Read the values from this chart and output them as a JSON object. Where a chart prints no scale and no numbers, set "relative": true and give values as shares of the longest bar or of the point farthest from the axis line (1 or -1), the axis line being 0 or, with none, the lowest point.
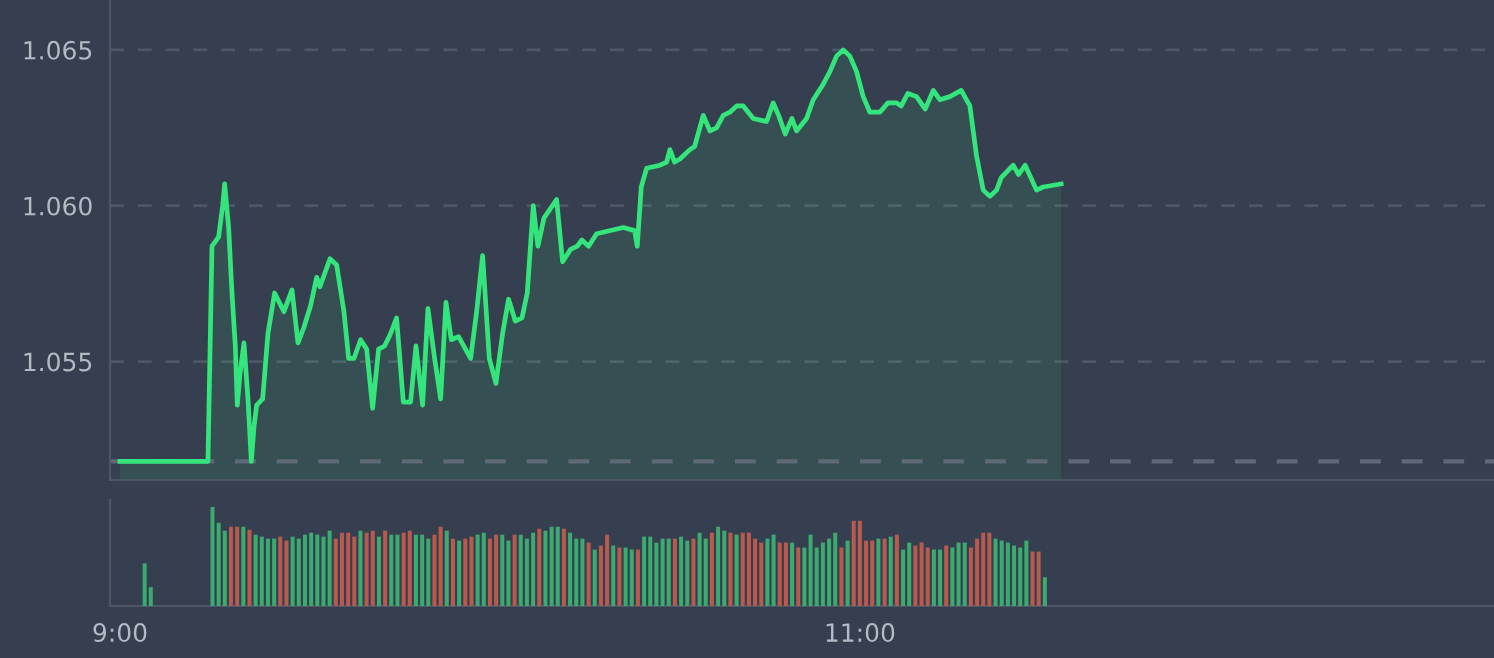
{
  "chart_data": [
    {
      "type": "area",
      "color": "#33e57a",
      "grid": "y",
      "tick_labels": "y",
      "xlim": [
        8.973,
        12.714
      ],
      "ylim": [
        1.0512,
        1.0666
      ],
      "yticks": [
        1.055,
        {
          "value": 1.06,
          "label": "1.060"
        },
        1.065
      ],
      "ref_lines": [
        {
          "axis": "y",
          "value": 1.0518,
          "color": "#5f6877",
          "line_style": "dashed"
        }
      ],
      "x": [
        9.0,
        9.2378,
        9.2487,
        9.2667,
        9.2775,
        9.2829,
        9.2937,
        9.3027,
        9.3117,
        9.3171,
        9.3243,
        9.3351,
        9.346,
        9.355,
        9.3622,
        9.3694,
        9.3856,
        9.4,
        9.418,
        9.4432,
        9.4649,
        9.4811,
        9.4973,
        9.5153,
        9.5315,
        9.5405,
        9.5676,
        9.5856,
        9.6054,
        9.618,
        9.6324,
        9.6504,
        9.6667,
        9.6829,
        9.6991,
        9.7153,
        9.7315,
        9.7477,
        9.7658,
        9.7856,
        9.8,
        9.818,
        9.8324,
        9.8505,
        9.8667,
        9.8811,
        9.8955,
        9.9153,
        9.9477,
        9.964,
        9.9802,
        9.9982,
        10.0162,
        10.0342,
        10.0504,
        10.0685,
        10.0865,
        10.1009,
        10.1171,
        10.1297,
        10.1459,
        10.1802,
        10.1964,
        10.218,
        10.236,
        10.2486,
        10.2667,
        10.2883,
        10.3604,
        10.391,
        10.3982,
        10.409,
        10.4234,
        10.4595,
        10.4775,
        10.4865,
        10.4991,
        10.5135,
        10.5405,
        10.5532,
        10.5766,
        10.5946,
        10.6126,
        10.6306,
        10.6486,
        10.6667,
        10.6847,
        10.7117,
        10.7477,
        10.7658,
        10.7802,
        10.7982,
        10.8162,
        10.8288,
        10.8559,
        10.8739,
        10.9009,
        10.9189,
        10.9369,
        10.955,
        10.973,
        10.991,
        11.009,
        11.027,
        11.0541,
        11.0757,
        11.0991,
        11.1117,
        11.1297,
        11.1532,
        11.1766,
        11.1982,
        11.2162,
        11.2432,
        11.2739,
        11.2973,
        11.3153,
        11.3333,
        11.3514,
        11.3694,
        11.382,
        11.4144,
        11.4288,
        11.4468,
        11.4775,
        11.4955,
        11.5441
      ],
      "values": [
        1.0518,
        1.0518,
        1.0587,
        1.059,
        1.06,
        1.0607,
        1.0593,
        1.0572,
        1.0555,
        1.0536,
        1.0546,
        1.0556,
        1.0538,
        1.0518,
        1.0529,
        1.0536,
        1.0538,
        1.0559,
        1.0572,
        1.0566,
        1.0573,
        1.0556,
        1.0561,
        1.0568,
        1.0577,
        1.0574,
        1.0583,
        1.0581,
        1.0566,
        1.0551,
        1.0551,
        1.0557,
        1.0554,
        1.0535,
        1.0554,
        1.0555,
        1.0559,
        1.0564,
        1.0537,
        1.0537,
        1.0555,
        1.0536,
        1.0567,
        1.0551,
        1.0538,
        1.0569,
        1.0557,
        1.0558,
        1.0551,
        1.0566,
        1.0584,
        1.0551,
        1.0543,
        1.0559,
        1.057,
        1.0563,
        1.0564,
        1.0572,
        1.06,
        1.0587,
        1.0596,
        1.0602,
        1.0582,
        1.0586,
        1.0587,
        1.0589,
        1.0587,
        1.0591,
        1.0593,
        1.0592,
        1.0587,
        1.0606,
        1.0612,
        1.0613,
        1.0614,
        1.0618,
        1.0614,
        1.0615,
        1.0618,
        1.0619,
        1.0629,
        1.0624,
        1.0625,
        1.0629,
        1.063,
        1.0632,
        1.0632,
        1.0628,
        1.0627,
        1.0633,
        1.0629,
        1.0623,
        1.0628,
        1.0624,
        1.0628,
        1.0634,
        1.0639,
        1.0643,
        1.0648,
        1.065,
        1.0648,
        1.0643,
        1.0635,
        1.063,
        1.063,
        1.0633,
        1.0633,
        1.0632,
        1.0636,
        1.0635,
        1.0631,
        1.0637,
        1.0634,
        1.0635,
        1.0637,
        1.0632,
        1.0616,
        1.0605,
        1.0603,
        1.0605,
        1.0609,
        1.0613,
        1.061,
        1.0613,
        1.0605,
        1.0606,
        1.0607
      ]
    },
    {
      "type": "bar",
      "relative": true,
      "tick_labels": "x",
      "xlim": [
        8.973,
        12.714
      ],
      "xticks": [
        {
          "value": 9,
          "label": "9:00"
        },
        {
          "value": 11,
          "label": "11:00"
        }
      ],
      "x": [
        9.0667,
        9.0833,
        9.25,
        9.2667,
        9.2833,
        9.3,
        9.3167,
        9.3333,
        9.35,
        9.3667,
        9.3833,
        9.4,
        9.4167,
        9.4333,
        9.45,
        9.4667,
        9.4833,
        9.5,
        9.5167,
        9.5333,
        9.55,
        9.5667,
        9.5833,
        9.6,
        9.6167,
        9.6333,
        9.65,
        9.6667,
        9.6833,
        9.7,
        9.7167,
        9.7333,
        9.75,
        9.7667,
        9.7833,
        9.8,
        9.8167,
        9.8333,
        9.85,
        9.8667,
        9.8833,
        9.9,
        9.9167,
        9.9333,
        9.95,
        9.9667,
        9.9833,
        10,
        10.0167,
        10.0333,
        10.05,
        10.0667,
        10.0833,
        10.1,
        10.1167,
        10.1333,
        10.15,
        10.1667,
        10.1833,
        10.2,
        10.2167,
        10.2333,
        10.25,
        10.2667,
        10.2833,
        10.3,
        10.3167,
        10.3333,
        10.35,
        10.3667,
        10.3833,
        10.4,
        10.4167,
        10.4333,
        10.45,
        10.4667,
        10.4833,
        10.5,
        10.5167,
        10.5333,
        10.55,
        10.5667,
        10.5833,
        10.6,
        10.6167,
        10.6333,
        10.65,
        10.6667,
        10.6833,
        10.7,
        10.7167,
        10.7333,
        10.75,
        10.7667,
        10.7833,
        10.8,
        10.8167,
        10.8333,
        10.85,
        10.8667,
        10.8833,
        10.9,
        10.9167,
        10.9333,
        10.95,
        10.9667,
        10.9833,
        11,
        11.0167,
        11.0333,
        11.05,
        11.0667,
        11.0833,
        11.1,
        11.1167,
        11.1333,
        11.15,
        11.1667,
        11.1833,
        11.2,
        11.2167,
        11.2333,
        11.25,
        11.2667,
        11.2833,
        11.3,
        11.3167,
        11.3333,
        11.35,
        11.3667,
        11.3833,
        11.4,
        11.4167,
        11.4333,
        11.45,
        11.4667,
        11.4833,
        11.5
      ],
      "values": [
        0.43,
        0.19,
        1.0,
        0.84,
        0.76,
        0.8,
        0.8,
        0.8,
        0.77,
        0.72,
        0.7,
        0.68,
        0.68,
        0.7,
        0.66,
        0.7,
        0.68,
        0.72,
        0.74,
        0.72,
        0.7,
        0.76,
        0.68,
        0.74,
        0.74,
        0.7,
        0.76,
        0.74,
        0.76,
        0.7,
        0.76,
        0.72,
        0.72,
        0.74,
        0.76,
        0.72,
        0.72,
        0.68,
        0.72,
        0.8,
        0.76,
        0.68,
        0.66,
        0.68,
        0.7,
        0.72,
        0.74,
        0.68,
        0.72,
        0.72,
        0.66,
        0.72,
        0.72,
        0.68,
        0.74,
        0.78,
        0.76,
        0.8,
        0.8,
        0.78,
        0.74,
        0.68,
        0.68,
        0.64,
        0.57,
        0.61,
        0.72,
        0.61,
        0.59,
        0.59,
        0.57,
        0.57,
        0.7,
        0.7,
        0.64,
        0.68,
        0.68,
        0.68,
        0.7,
        0.66,
        0.68,
        0.74,
        0.68,
        0.74,
        0.8,
        0.76,
        0.74,
        0.72,
        0.74,
        0.74,
        0.68,
        0.64,
        0.68,
        0.72,
        0.64,
        0.64,
        0.64,
        0.59,
        0.59,
        0.72,
        0.59,
        0.64,
        0.68,
        0.74,
        0.59,
        0.66,
        0.86,
        0.86,
        0.66,
        0.66,
        0.68,
        0.68,
        0.7,
        0.72,
        0.57,
        0.64,
        0.61,
        0.64,
        0.59,
        0.57,
        0.57,
        0.61,
        0.59,
        0.64,
        0.64,
        0.59,
        0.68,
        0.74,
        0.74,
        0.68,
        0.66,
        0.64,
        0.61,
        0.59,
        0.66,
        0.55,
        0.55,
        0.29
      ],
      "colors": [
        "#3bab6f",
        "#3bab6f",
        "#3bab6f",
        "#3bab6f",
        "#3bab6f",
        "#b85a4e",
        "#b85a4e",
        "#3bab6f",
        "#b85a4e",
        "#3bab6f",
        "#3bab6f",
        "#3bab6f",
        "#3bab6f",
        "#b85a4e",
        "#b85a4e",
        "#3bab6f",
        "#3bab6f",
        "#3bab6f",
        "#3bab6f",
        "#3bab6f",
        "#3bab6f",
        "#3bab6f",
        "#b85a4e",
        "#b85a4e",
        "#b85a4e",
        "#b85a4e",
        "#3bab6f",
        "#b85a4e",
        "#b85a4e",
        "#3bab6f",
        "#b85a4e",
        "#3bab6f",
        "#3bab6f",
        "#b85a4e",
        "#b85a4e",
        "#3bab6f",
        "#3bab6f",
        "#3bab6f",
        "#b85a4e",
        "#b85a4e",
        "#3bab6f",
        "#b85a4e",
        "#3bab6f",
        "#b85a4e",
        "#b85a4e",
        "#3bab6f",
        "#3bab6f",
        "#b85a4e",
        "#b85a4e",
        "#3bab6f",
        "#3bab6f",
        "#b85a4e",
        "#3bab6f",
        "#3bab6f",
        "#3bab6f",
        "#b85a4e",
        "#3bab6f",
        "#3bab6f",
        "#3bab6f",
        "#b85a4e",
        "#3bab6f",
        "#3bab6f",
        "#3bab6f",
        "#b85a4e",
        "#3bab6f",
        "#b85a4e",
        "#b85a4e",
        "#3bab6f",
        "#b85a4e",
        "#3bab6f",
        "#3bab6f",
        "#b85a4e",
        "#3bab6f",
        "#3bab6f",
        "#3bab6f",
        "#3bab6f",
        "#3bab6f",
        "#b85a4e",
        "#3bab6f",
        "#3bab6f",
        "#b85a4e",
        "#3bab6f",
        "#3bab6f",
        "#b85a4e",
        "#3bab6f",
        "#3bab6f",
        "#b85a4e",
        "#3bab6f",
        "#b85a4e",
        "#b85a4e",
        "#b85a4e",
        "#b85a4e",
        "#3bab6f",
        "#3bab6f",
        "#b85a4e",
        "#b85a4e",
        "#3bab6f",
        "#b85a4e",
        "#3bab6f",
        "#3bab6f",
        "#3bab6f",
        "#3bab6f",
        "#3bab6f",
        "#3bab6f",
        "#b85a4e",
        "#3bab6f",
        "#b85a4e",
        "#b85a4e",
        "#b85a4e",
        "#b85a4e",
        "#3bab6f",
        "#b85a4e",
        "#3bab6f",
        "#b85a4e",
        "#3bab6f",
        "#3bab6f",
        "#b85a4e",
        "#b85a4e",
        "#b85a4e",
        "#3bab6f",
        "#3bab6f",
        "#b85a4e",
        "#3bab6f",
        "#3bab6f",
        "#3bab6f",
        "#b85a4e",
        "#b85a4e",
        "#b85a4e",
        "#b85a4e",
        "#3bab6f",
        "#3bab6f",
        "#3bab6f",
        "#3bab6f",
        "#3bab6f",
        "#3bab6f",
        "#b85a4e",
        "#b85a4e",
        "#3bab6f"
      ]
    }
  ]
}
